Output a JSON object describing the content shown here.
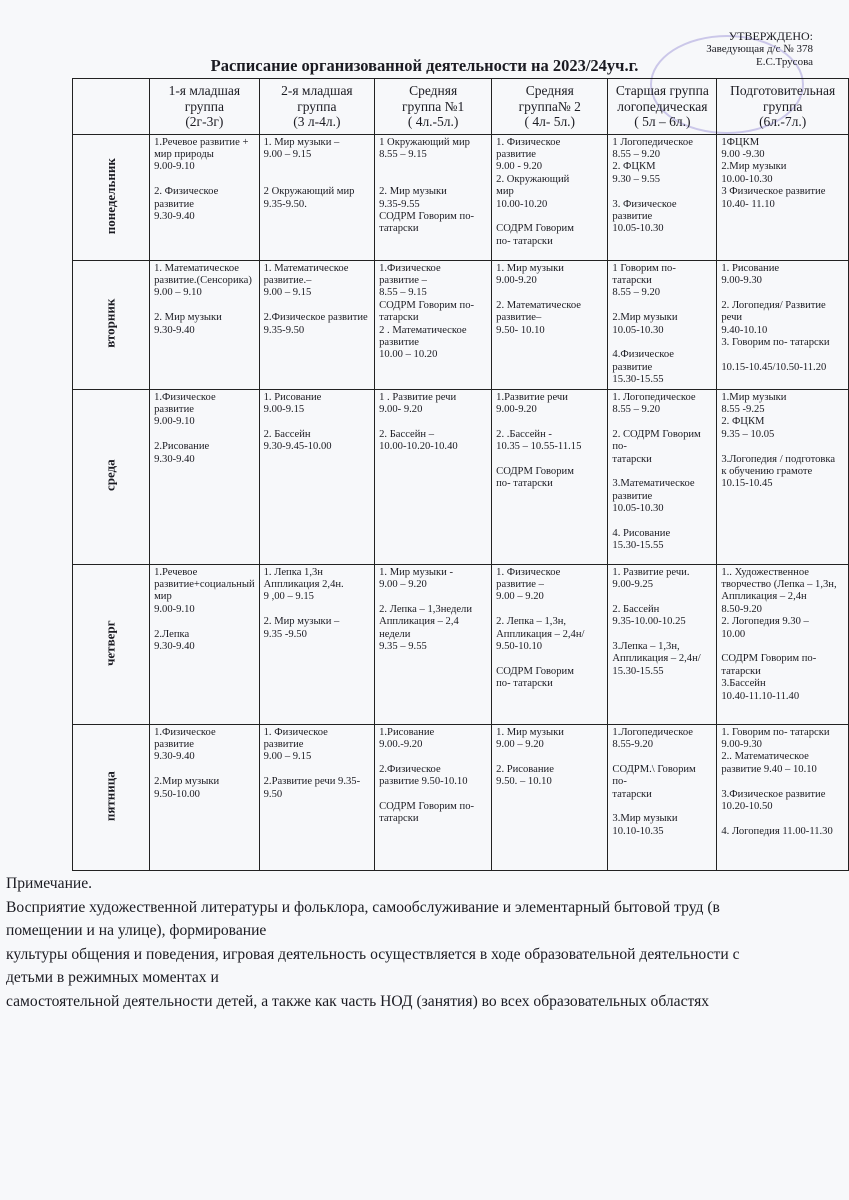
{
  "approval": {
    "line1": "УТВЕРЖДЕНО:",
    "line2": "Заведующая  д/с № 378",
    "line3": "Е.С.Трусова"
  },
  "title": "Расписание организованной деятельности на 2023/24уч.г.",
  "headers": [
    "1-я младшая\nгруппа\n(2г-3г)",
    "2-я младшая\nгруппа\n(3 л-4л.)",
    "Средняя\nгруппа №1\n( 4л.-5л.)",
    "Средняя\nгруппа№ 2\n( 4л- 5л.)",
    "Старшая группа\nлогопедическая\n(  5л – 6л.)",
    "Подготовительная\nгруппа\n(6л.-7л.)"
  ],
  "rows": [
    {
      "day": "понедельник",
      "cells": [
        "1.Речевое развитие +\nмир природы\n9.00-9.10\n\n2. Физическое развитие\n9.30-9.40",
        "1. Мир музыки –\n    9.00 – 9.15\n\n\n2 Окружающий мир\n9.35-9.50.",
        "1 Окружающий мир\n 8.55 – 9.15\n\n\n2. Мир музыки\n9.35-9.55\nСОДРМ Говорим по-\nтатарски",
        "1. Физическое\nразвитие\n 9.00 - 9.20\n2. Окружающий\nмир\n10.00-10.20\n\nСОДРМ Говорим\nпо- татарски",
        "1 Логопедическое\n   8.55 – 9.20\n2. ФЦКМ\n9.30 – 9.55\n\n3. Физическое развитие\n10.05-10.30",
        "1ФЦКМ\n9.00 -9.30\n2.Мир музыки\n10.00-10.30\n3 Физическое развитие\n10.40- 11.10"
      ]
    },
    {
      "day": "вторник",
      "cells": [
        "1.  Математическое\nразвитие.(Сенсорика)\n   9.00 – 9.10\n\n2. Мир музыки\n9.30-9.40",
        "1.  Математическое\nразвитие.–\n   9.00 – 9.15\n\n2.Физическое развитие\n9.35-9.50",
        "1.Физическое\nразвитие –\n   8.55 – 9.15\nСОДРМ Говорим по-\nтатарски\n2 . Математическое\nразвитие\n   10.00 – 10.20",
        "1. Мир музыки\n9.00-9.20\n\n2. Математическое\nразвитие–\n9.50- 10.10",
        "1 Говорим по- татарски\n8.55 – 9.20\n\n2.Мир музыки\n10.05-10.30\n\n4.Физическое развитие\n15.30-15.55",
        "1. Рисование\n9.00-9.30\n\n2. Логопедия/ Развитие\nречи\n 9.40-10.10\n3. Говорим по- татарски\n\n10.15-10.45/10.50-11.20"
      ]
    },
    {
      "day": "среда",
      "cells": [
        "1.Физическое развитие\n9.00-9.10\n\n2.Рисование\n9.30-9.40",
        "1. Рисование\n9.00-9.15\n\n2. Бассейн\n9.30-9.45-10.00",
        "1 . Развитие речи\n   9.00- 9.20\n\n2. Бассейн –\n10.00-10.20-10.40",
        "1.Развитие речи\n9.00-9.20\n\n2. .Бассейн  -\n10.35 – 10.55-11.15\n\nСОДРМ Говорим\nпо- татарски",
        "1. Логопедическое\n8.55 – 9.20\n\n2. СОДРМ Говорим по-\nтатарски\n\n3.Математическое\nразвитие\n10.05-10.30\n\n4. Рисование\n15.30-15.55",
        "1.Мир музыки\n8.55 -9.25\n2. ФЦКМ\n9.35 – 10.05\n\n3.Логопедия / подготовка\nк обучению грамоте\n 10.15-10.45"
      ]
    },
    {
      "day": "четверг",
      "cells": [
        "1.Речевое\nразвитие+социальный\nмир\n9.00-9.10\n\n2.Лепка\n9.30-9.40",
        "1. Лепка 1,3н\nАппликация 2,4н.\n   9 ,00 – 9.15\n\n2. Мир музыки –\n9.35 -9.50",
        "1. Мир музыки  -\n  9.00 – 9.20\n\n2. Лепка – 1,3недели\nАппликация – 2,4\nнедели\n9.35 – 9.55",
        "1. Физическое\nразвитие  –\n 9.00 – 9.20\n\n2. Лепка – 1,3н,\nАппликация – 2,4н/\n9.50-10.10\n\nСОДРМ Говорим\nпо- татарски",
        "1. Развитие речи.\n9.00-9.25\n\n2. Бассейн\n9.35-10.00-10.25\n\n3.Лепка – 1,3н,\nАппликация – 2,4н/\n15.30-15.55",
        "1.. Художественное\nтворчество (Лепка – 1,3н,\nАппликация – 2,4н\n 8.50-9.20\n2. Логопедия   9.30 –\n10.00\n\nСОДРМ Говорим по-\nтатарски\n3.Бассейн\n10.40-11.10-11.40"
      ]
    },
    {
      "day": "пятница",
      "cells": [
        "1.Физическое развитие\n9.30-9.40\n\n2.Мир музыки\n9.50-10.00",
        "1. Физическое развитие\n9.00 – 9.15\n\n2.Развитие речи 9.35-\n9.50",
        "1.Рисование\n9.00.-9.20\n\n2.Физическое\nразвитие  9.50-10.10\n\nСОДРМ Говорим по-\nтатарски",
        "1. Мир музыки\n9.00 – 9.20\n\n2. Рисование\n9.50. – 10.10",
        "1.Логопедическое\n8.55-9.20\n\nСОДРМ.\\ Говорим по-\nтатарски\n\n3.Мир музыки\n10.10-10.35",
        "1. Говорим по- татарски\n9.00-9.30\n2.. Математическое\nразвитие 9.40 – 10.10\n\n3.Физическое развитие\n10.20-10.50\n\n4. Логопедия 11.00-11.30"
      ]
    }
  ],
  "note": {
    "heading": "Примечание.",
    "lines": [
      "Восприятие художественной литературы и фольклора, самообслуживание и элементарный бытовой труд (в помещении и на улице), формирование",
      "культуры общения и поведения, игровая деятельность осуществляется в ходе образовательной деятельности с детьми в режимных моментах и",
      "самостоятельной деятельности детей, а также как часть НОД (занятия) во всех образовательных областях"
    ]
  }
}
